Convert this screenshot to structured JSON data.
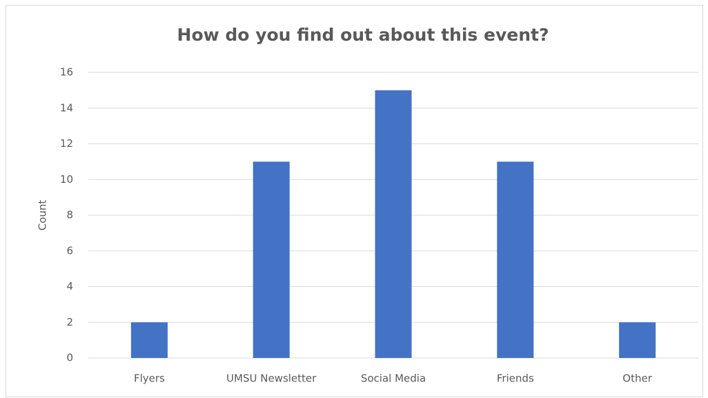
{
  "chart_data": {
    "type": "bar",
    "title": "How do you find out about this event?",
    "y_label": "Count",
    "categories": [
      "Flyers",
      "UMSU Newsletter",
      "Social Media",
      "Friends",
      "Other"
    ],
    "values": [
      2,
      11,
      15,
      11,
      2
    ],
    "color": "#4472c4",
    "ylim": [
      0,
      16
    ],
    "yticks": [
      0,
      2,
      4,
      6,
      8,
      10,
      12,
      14,
      16
    ],
    "grid": true
  }
}
